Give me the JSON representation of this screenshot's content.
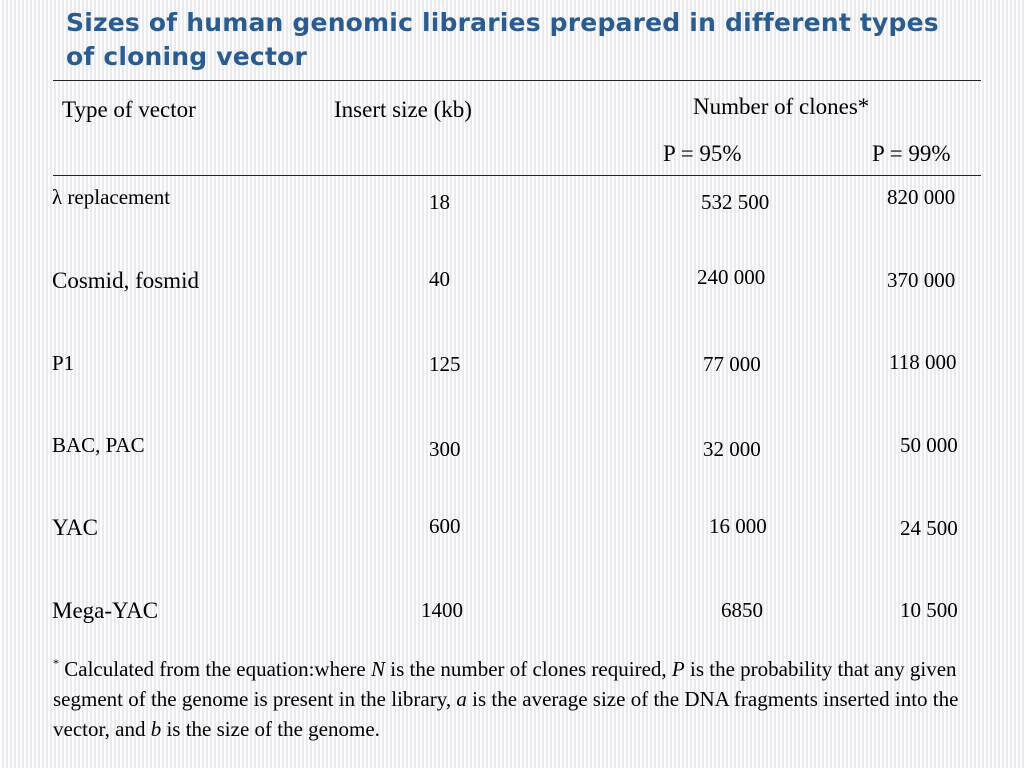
{
  "slide_title": "Sizes of human genomic libraries prepared in different types of cloning vector",
  "table": {
    "headers": {
      "type": "Type of vector",
      "insert": "Insert size (kb)",
      "clones": "Number of clones*",
      "p95": "P = 95%",
      "p99": "P = 99%"
    },
    "rows": [
      {
        "vector": "λ replacement",
        "insert": "18",
        "p95": "532 500",
        "p99": "820 000"
      },
      {
        "vector": "Cosmid, fosmid",
        "insert": "40",
        "p95": "240 000",
        "p99": "370 000"
      },
      {
        "vector": "P1",
        "insert": "125",
        "p95": "77 000",
        "p99": "118 000"
      },
      {
        "vector": "BAC, PAC",
        "insert": "300",
        "p95": "32 000",
        "p99": "50 000"
      },
      {
        "vector": "YAC",
        "insert": "600",
        "p95": "16 000",
        "p99": "24 500"
      },
      {
        "vector": "Mega-YAC",
        "insert": "1400",
        "p95": "6850",
        "p99": "10 500"
      }
    ]
  },
  "footnote": {
    "marker": "*",
    "t1": " Calculated from the equation:where ",
    "N": "N",
    "t2": " is the number of clones required, ",
    "P": "P",
    "t3": " is the probability that any given segment of the genome is present in the library, ",
    "a": "a",
    "t4": " is the average size of the DNA fragments inserted into the vector, and ",
    "b": "b",
    "t5": " is the size of the genome."
  }
}
